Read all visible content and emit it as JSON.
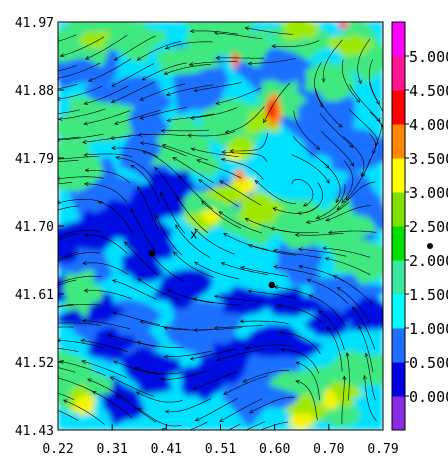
{
  "chart_data": {
    "type": "heatmap",
    "title": "",
    "xlabel": "",
    "ylabel": "",
    "x_ticks": [
      "0.22",
      "0.31",
      "0.41",
      "0.51",
      "0.60",
      "0.70",
      "0.79"
    ],
    "y_ticks": [
      "41.97",
      "41.88",
      "41.79",
      "41.70",
      "41.61",
      "41.52",
      "41.43"
    ],
    "xlim": [
      0.22,
      0.79
    ],
    "ylim": [
      41.43,
      41.97
    ],
    "colorbar": {
      "ticks": [
        "0.000",
        "0.500",
        "1.000",
        "1.500",
        "2.000",
        "2.500",
        "3.000",
        "3.500",
        "4.000",
        "4.500",
        "5.000"
      ],
      "range": [
        -0.5,
        5.5
      ],
      "colors": [
        "#8a2be2",
        "#0000e0",
        "#1e6fff",
        "#00ffff",
        "#38e8a0",
        "#00e000",
        "#80e000",
        "#ffff00",
        "#ff8800",
        "#ff0000",
        "#ff1493",
        "#ff00ff"
      ]
    },
    "markers": [
      {
        "type": "x",
        "label": "x",
        "x": 0.458,
        "y": 41.689
      },
      {
        "type": "dot",
        "x": 0.385,
        "y": 41.664
      },
      {
        "type": "dot",
        "x": 0.595,
        "y": 41.622
      }
    ],
    "grid": false,
    "overlay": "streamlines"
  }
}
